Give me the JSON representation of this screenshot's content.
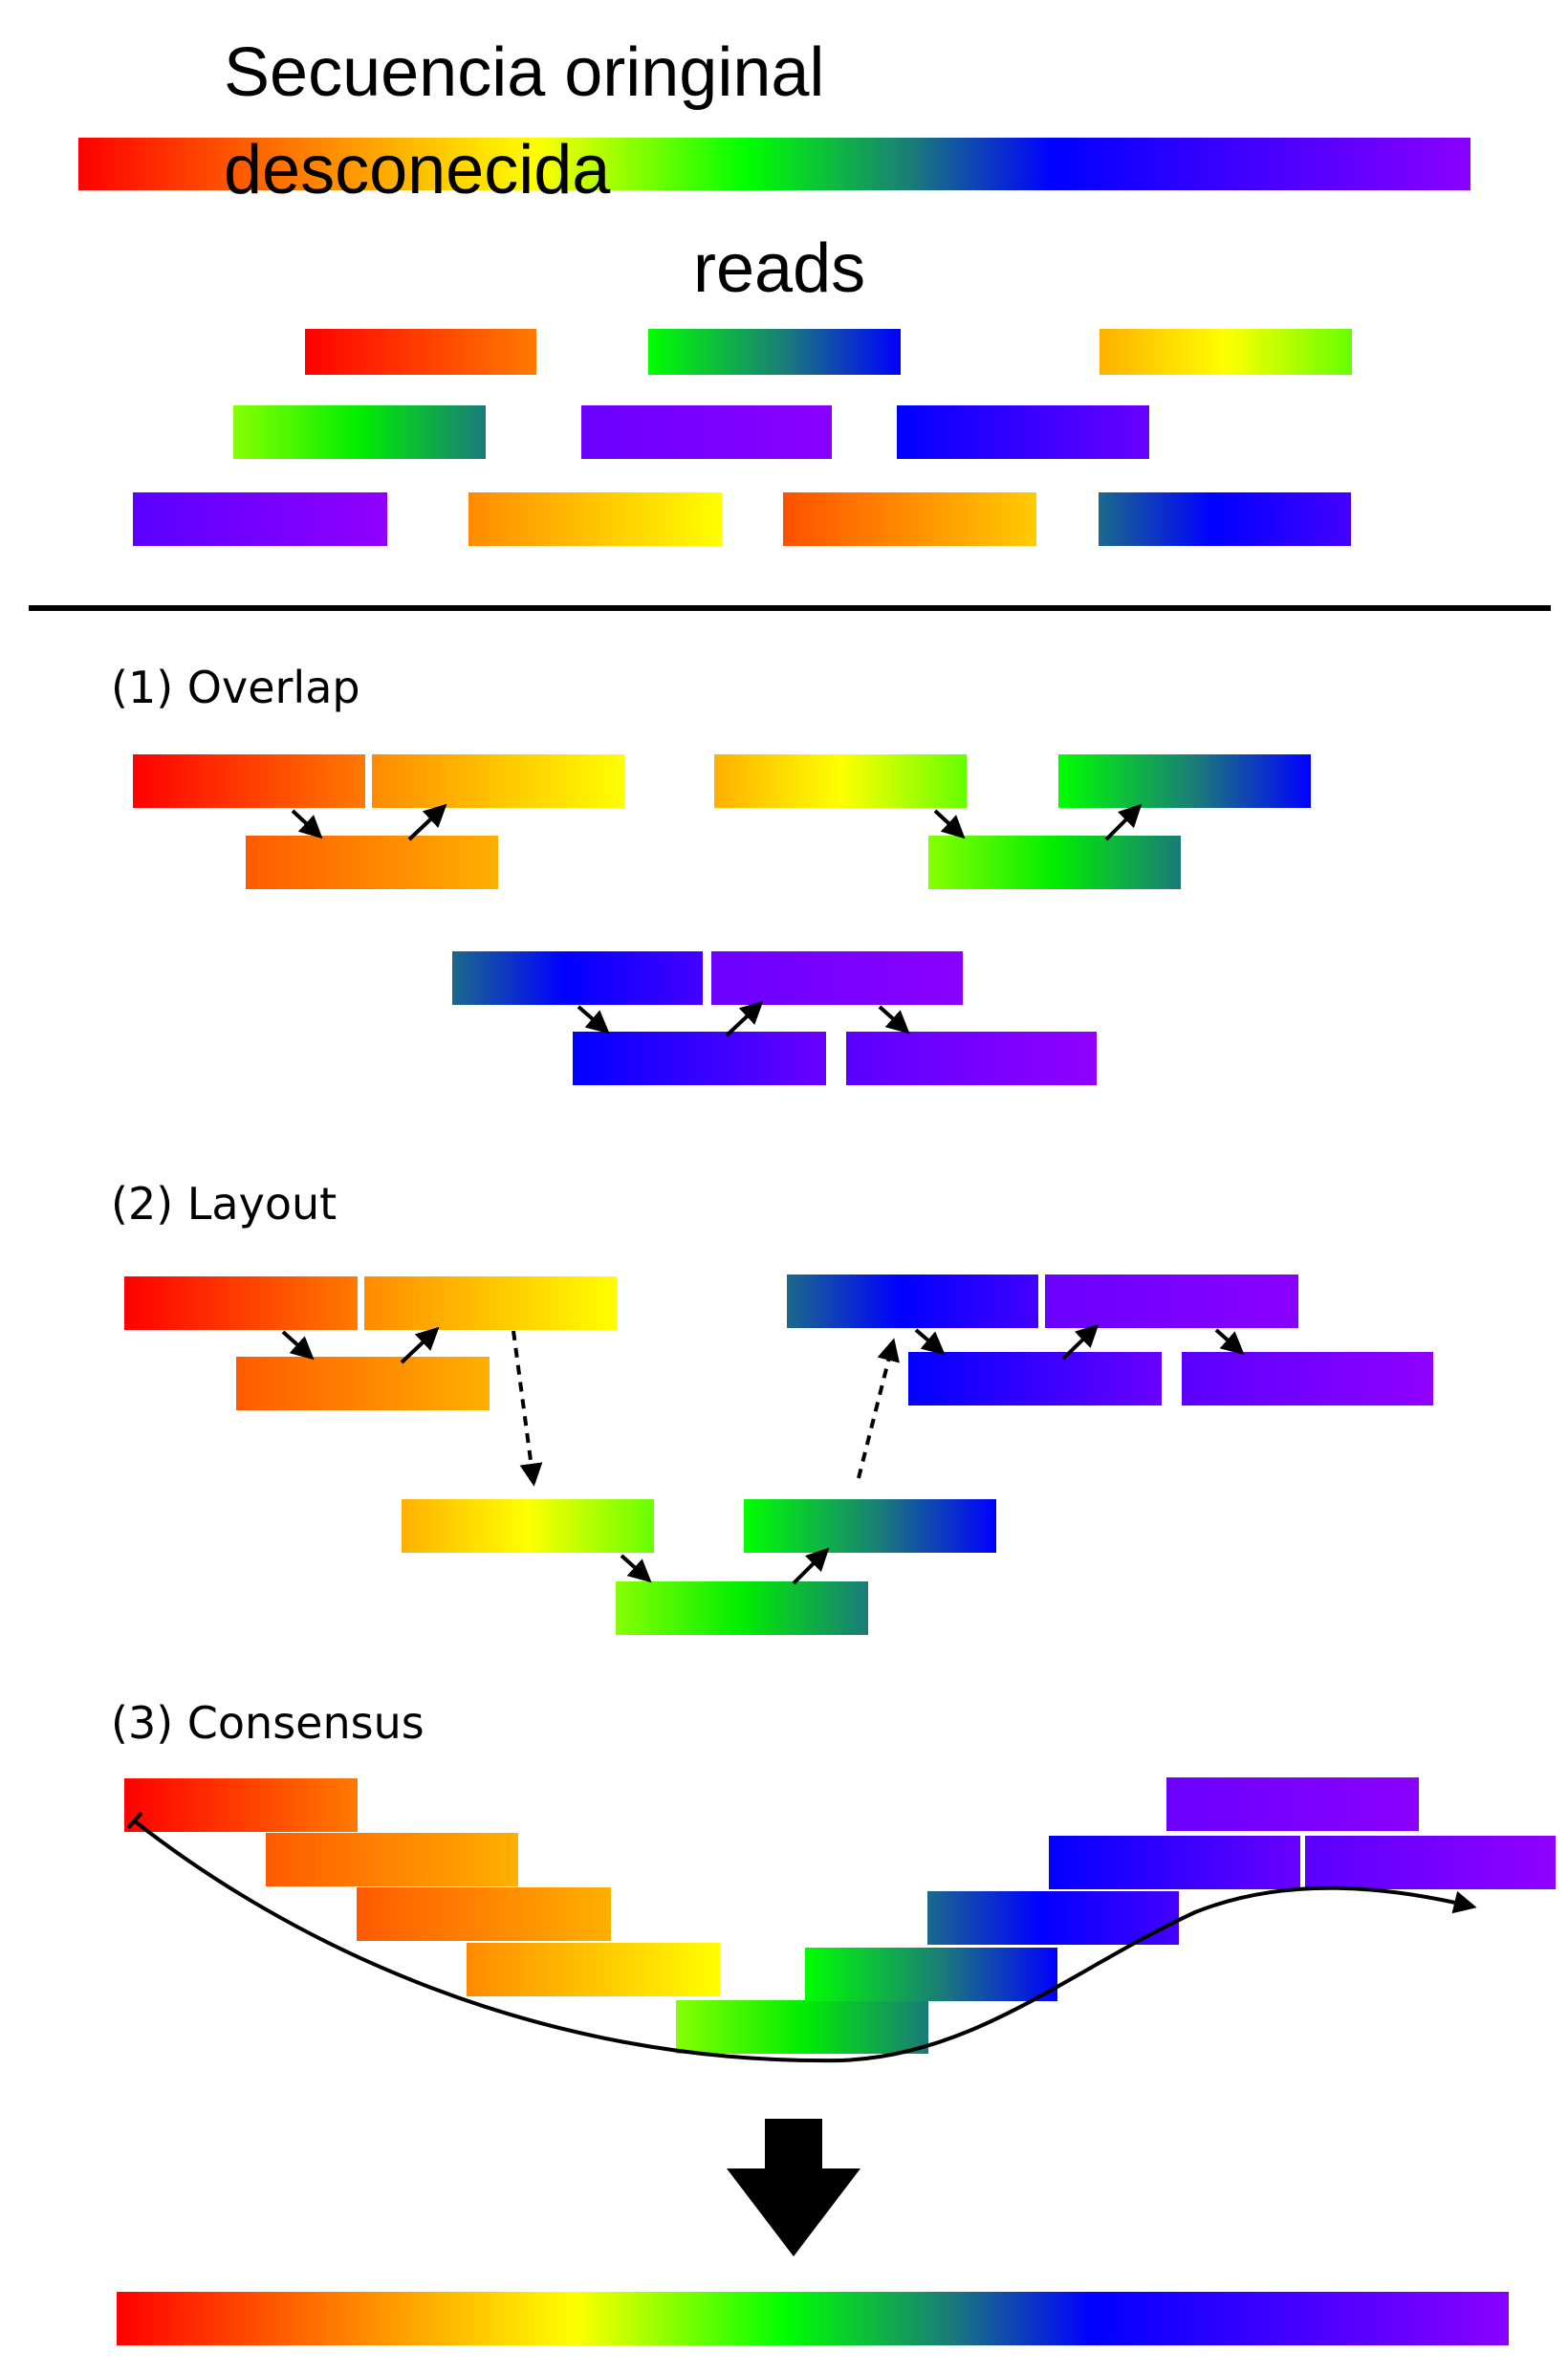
{
  "title_line1": "Secuencia oringinal",
  "title_line2": "desconecida",
  "reads_label": "reads",
  "steps": {
    "overlap": "(1) Overlap",
    "layout": "(2) Layout",
    "consensus": "(3) Consensus"
  },
  "colors": {
    "red": "#ff0000",
    "orange": "#ff8c00",
    "yellow": "#ffff00",
    "green": "#00ff00",
    "teal": "#1a7a7a",
    "blue": "#0000ff",
    "violet": "#8a00ff",
    "arrow": "#000000"
  }
}
